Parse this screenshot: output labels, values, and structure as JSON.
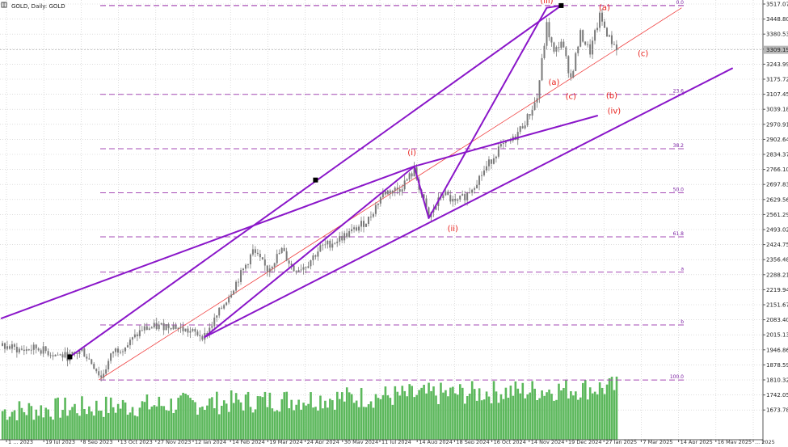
{
  "colors": {
    "background": "#ffffff",
    "grid": "#c8c8c8",
    "candle": "#7a7a7a",
    "volume": "#5cb85c",
    "channel": "#8a16c9",
    "fib": "#a64bb5",
    "trend": "#f04040",
    "wave_label": "#e8211c",
    "current_price_bg": "#b8b8b8"
  },
  "chart_data": {
    "type": "candlestick",
    "title": "GOLD, Daily: GOLD",
    "symbol": "GOLD",
    "timeframe": "Daily",
    "y_ticks": [
      3517.07,
      3448.8,
      3380.53,
      3312.26,
      3243.99,
      3175.72,
      3107.45,
      3039.18,
      2970.91,
      2902.64,
      2834.37,
      2766.1,
      2697.83,
      2629.56,
      2561.29,
      2493.02,
      2424.75,
      2356.48,
      2288.21,
      2219.94,
      2151.67,
      2083.4,
      2015.13,
      1946.86,
      1878.59,
      1810.32,
      1742.05,
      1673.78
    ],
    "y_tick_labels": [
      "3517.07",
      "3448.80",
      "3380.53",
      "",
      "3243.99",
      "3175.72",
      "3107.45",
      "3039.18",
      "2970.91",
      "2902.64",
      "2834.37",
      "2766.10",
      "2697.83",
      "2629.56",
      "2561.29",
      "2493.02",
      "2424.75",
      "2356.48",
      "2288.21",
      "2219.94",
      "2151.67",
      "2083.40",
      "2015.13",
      "1946.86",
      "1878.59",
      "1810.32",
      "1742.05",
      "1673.78"
    ],
    "current_price": 3309.19,
    "current_price_label": "3309.19",
    "ylim": [
      1650,
      3535
    ],
    "x_labels": [
      "1 ... 2023",
      "19 Jul 2023",
      "8 Sep 2023",
      "13 Oct 2023",
      "27 Nov 2023",
      "12 Jan 2024",
      "14 Feb 2024",
      "19 Mar 2024",
      "24 Apr 2024",
      "30 May 2024",
      "11 Jul 2024",
      "14 Aug 2024",
      "18 Sep 2024",
      "16 Oct 2024",
      "14 Nov 2024",
      "19 Dec 2024",
      "27 Jan 2025",
      "7 Mar 2025",
      "14 Apr 2025",
      "16 May 2025",
      "... 2025"
    ],
    "fib_levels": [
      {
        "label": "0.0",
        "price": 3510
      },
      {
        "label": "23.6",
        "price": 3107
      },
      {
        "label": "38.2",
        "price": 2860
      },
      {
        "label": "50.0",
        "price": 2660
      },
      {
        "label": "61.8",
        "price": 2460
      },
      {
        "label": "a",
        "price": 2300
      },
      {
        "label": "b",
        "price": 2060
      },
      {
        "label": "100.0",
        "price": 1810
      }
    ],
    "wave_labels": [
      {
        "text": "(iii)",
        "bar": 226,
        "price": 3520
      },
      {
        "text": "(a)",
        "bar": 250,
        "price": 3490
      },
      {
        "text": "(c)",
        "bar": 266,
        "price": 3280
      },
      {
        "text": "(a)",
        "bar": 229,
        "price": 3150
      },
      {
        "text": "(c)",
        "bar": 236,
        "price": 3085
      },
      {
        "text": "(b)",
        "bar": 253,
        "price": 3090
      },
      {
        "text": "(iv)",
        "bar": 254,
        "price": 3020
      },
      {
        "text": "(i)",
        "bar": 170,
        "price": 2830
      },
      {
        "text": "(ii)",
        "bar": 187,
        "price": 2485
      }
    ],
    "channel_lines": [
      {
        "p1": [
          28,
          1915
        ],
        "p2": [
          232,
          3510
        ]
      },
      {
        "p1": [
          -0.4,
          2090
        ],
        "p2": [
          171,
          2780
        ]
      },
      {
        "p1": [
          84,
          2005
        ],
        "p2": [
          303,
          3225
        ]
      },
      {
        "p1": [
          84,
          2005
        ],
        "p2": [
          171,
          2780
        ]
      },
      {
        "p1": [
          171,
          2780
        ],
        "p2": [
          177,
          2545
        ]
      },
      {
        "p1": [
          177,
          2545
        ],
        "p2": [
          226,
          3500
        ]
      },
      {
        "p1": [
          226,
          3500
        ],
        "p2": [
          232,
          3510
        ]
      },
      {
        "p1": [
          171,
          2780
        ],
        "p2": [
          247,
          3010
        ]
      }
    ],
    "trend_line": {
      "p1": [
        40,
        1810
      ],
      "p2": [
        282,
        3500
      ]
    },
    "markers": [
      {
        "bar": 28,
        "price": 1915
      },
      {
        "bar": 130,
        "price": 2718
      },
      {
        "bar": 232,
        "price": 3510
      }
    ],
    "candle_anchors": [
      [
        0,
        1965
      ],
      [
        8,
        1945
      ],
      [
        14,
        1955
      ],
      [
        22,
        1925
      ],
      [
        28,
        1915
      ],
      [
        33,
        1945
      ],
      [
        38,
        1875
      ],
      [
        41,
        1820
      ],
      [
        46,
        1940
      ],
      [
        52,
        1970
      ],
      [
        58,
        2040
      ],
      [
        63,
        2050
      ],
      [
        70,
        2060
      ],
      [
        76,
        2035
      ],
      [
        84,
        2010
      ],
      [
        88,
        2080
      ],
      [
        93,
        2175
      ],
      [
        100,
        2310
      ],
      [
        104,
        2395
      ],
      [
        110,
        2310
      ],
      [
        116,
        2400
      ],
      [
        121,
        2310
      ],
      [
        126,
        2330
      ],
      [
        132,
        2410
      ],
      [
        138,
        2440
      ],
      [
        146,
        2490
      ],
      [
        152,
        2540
      ],
      [
        158,
        2660
      ],
      [
        165,
        2680
      ],
      [
        171,
        2760
      ],
      [
        177,
        2545
      ],
      [
        183,
        2660
      ],
      [
        188,
        2610
      ],
      [
        193,
        2655
      ],
      [
        200,
        2760
      ],
      [
        206,
        2860
      ],
      [
        212,
        2900
      ],
      [
        218,
        3000
      ],
      [
        222,
        3090
      ],
      [
        226,
        3420
      ],
      [
        229,
        3290
      ],
      [
        232,
        3350
      ],
      [
        236,
        3180
      ],
      [
        240,
        3380
      ],
      [
        244,
        3300
      ],
      [
        248,
        3460
      ],
      [
        252,
        3360
      ],
      [
        255,
        3320
      ]
    ],
    "volume_scale": [
      0,
      1
    ]
  }
}
